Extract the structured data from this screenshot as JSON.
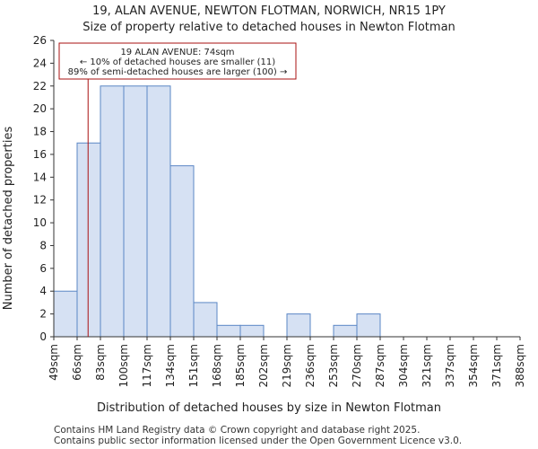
{
  "chart_data": {
    "type": "bar",
    "title": "19, ALAN AVENUE, NEWTON FLOTMAN, NORWICH, NR15 1PY",
    "subtitle": "Size of property relative to detached houses in Newton Flotman",
    "xlabel": "Distribution of detached houses by size in Newton Flotman",
    "ylabel": "Number of detached properties",
    "bin_edges": [
      49,
      66,
      83,
      100,
      117,
      134,
      151,
      168,
      185,
      202,
      219,
      236,
      253,
      270,
      287,
      304,
      321,
      337,
      354,
      371,
      388
    ],
    "tick_labels": [
      "49sqm",
      "66sqm",
      "83sqm",
      "100sqm",
      "117sqm",
      "134sqm",
      "151sqm",
      "168sqm",
      "185sqm",
      "202sqm",
      "219sqm",
      "236sqm",
      "253sqm",
      "270sqm",
      "287sqm",
      "304sqm",
      "321sqm",
      "337sqm",
      "354sqm",
      "371sqm",
      "388sqm"
    ],
    "values": [
      4,
      17,
      22,
      22,
      22,
      15,
      3,
      1,
      1,
      0,
      2,
      0,
      1,
      2,
      0,
      0,
      0,
      0,
      0,
      0
    ],
    "ylim": [
      0,
      26
    ],
    "yticks": [
      0,
      2,
      4,
      6,
      8,
      10,
      12,
      14,
      16,
      18,
      20,
      22,
      24,
      26
    ],
    "marker_value": 74,
    "annotation": {
      "line1": "19 ALAN AVENUE: 74sqm",
      "line2": "← 10% of detached houses are smaller (11)",
      "line3": "89% of semi-detached houses are larger (100) →"
    },
    "colors": {
      "bar_fill": "#d6e1f3",
      "bar_edge": "#5b87c5",
      "marker": "#aa1111"
    }
  },
  "footer": {
    "line1": "Contains HM Land Registry data © Crown copyright and database right 2025.",
    "line2": "Contains public sector information licensed under the Open Government Licence v3.0."
  }
}
